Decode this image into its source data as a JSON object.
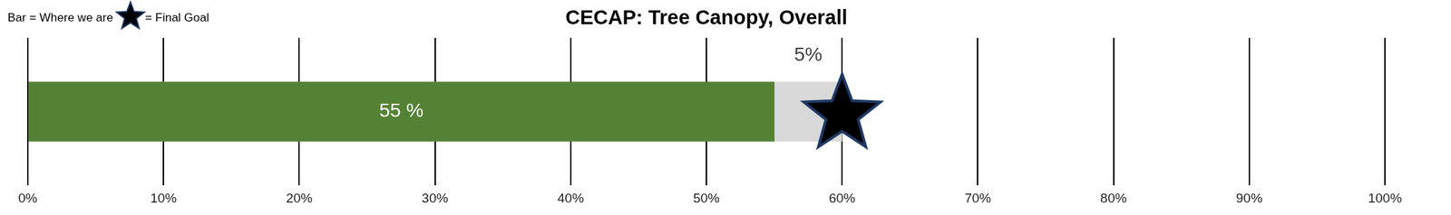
{
  "chart_data": {
    "type": "bar",
    "orientation": "horizontal",
    "stacked": true,
    "title": "CECAP: Tree Canopy, Overall",
    "categories": [
      null
    ],
    "series": [
      {
        "values": [
          55
        ],
        "value_labels": [
          "55 %"
        ],
        "color": "#548235"
      },
      {
        "values": [
          5
        ],
        "value_labels": [
          "5%"
        ],
        "color": "#d9d9d9"
      }
    ],
    "goal": {
      "value": 60,
      "marker": "star",
      "color": "#000000"
    },
    "legend": "upper left",
    "legend_items": [
      "Bar = Where we are",
      "= Final Goal"
    ],
    "xlim": [
      0,
      100
    ],
    "xticks": [
      {
        "value": 0,
        "label": "0%"
      },
      {
        "value": 10,
        "label": "10%"
      },
      {
        "value": 20,
        "label": "20%"
      },
      {
        "value": 30,
        "label": "30%"
      },
      {
        "value": 40,
        "label": "40%"
      },
      {
        "value": 50,
        "label": "50%"
      },
      {
        "value": 60,
        "label": "60%"
      },
      {
        "value": 70,
        "label": "70%"
      },
      {
        "value": 80,
        "label": "80%"
      },
      {
        "value": 90,
        "label": "90%"
      },
      {
        "value": 100,
        "label": "100%"
      }
    ],
    "grid": true,
    "data_labels": true,
    "tick_labels": "x"
  }
}
